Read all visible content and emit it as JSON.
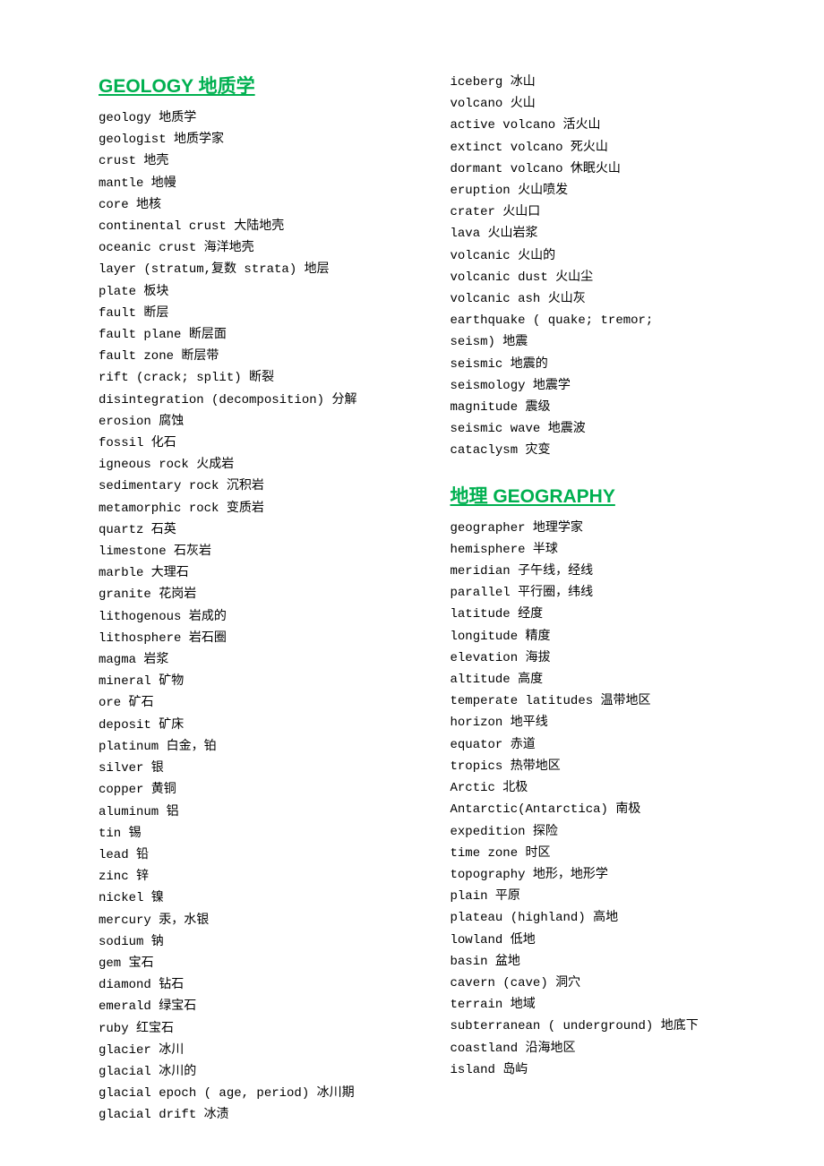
{
  "sections": [
    {
      "id": "geology",
      "heading": "GEOLOGY 地质学",
      "terms": [
        "geology 地质学",
        "geologist 地质学家",
        "crust 地壳",
        "mantle 地幔",
        "core 地核",
        "continental crust 大陆地壳",
        "oceanic crust 海洋地壳",
        "layer (stratum,复数 strata) 地层",
        "plate 板块",
        "fault 断层",
        "fault plane 断层面",
        "fault zone 断层带",
        "rift (crack; split) 断裂",
        "disintegration (decomposition) 分解",
        "erosion 腐蚀",
        "fossil 化石",
        "igneous rock 火成岩",
        "sedimentary rock 沉积岩",
        "metamorphic rock 变质岩",
        "quartz 石英",
        "limestone 石灰岩",
        "marble 大理石",
        "granite 花岗岩",
        "lithogenous 岩成的",
        "lithosphere 岩石圈",
        "magma 岩浆",
        "mineral 矿物",
        "ore 矿石",
        "deposit 矿床",
        "platinum 白金，铂",
        "silver 银",
        "copper 黄铜",
        "aluminum 铝",
        "tin 锡",
        "lead 铅",
        "zinc 锌",
        "nickel 镍",
        "mercury 汞，水银",
        "sodium 钠",
        "gem 宝石",
        "diamond 钻石",
        "emerald 绿宝石",
        "ruby 红宝石",
        "glacier 冰川",
        "glacial 冰川的",
        "glacial epoch ( age, period) 冰川期",
        "glacial drift 冰渍",
        "iceberg 冰山",
        "volcano 火山",
        "active volcano 活火山",
        "extinct volcano 死火山",
        "dormant volcano 休眠火山",
        "eruption 火山喷发",
        "crater 火山口",
        "lava 火山岩浆",
        "volcanic 火山的",
        "volcanic dust 火山尘",
        "volcanic ash 火山灰",
        "earthquake ( quake; tremor;",
        "seism) 地震",
        "seismic 地震的",
        "seismology 地震学",
        "magnitude 震级",
        "seismic wave 地震波",
        "cataclysm 灾变"
      ]
    },
    {
      "id": "geography",
      "heading": "地理 GEOGRAPHY",
      "terms": [
        "geographer 地理学家",
        "hemisphere 半球",
        "meridian 子午线，经线",
        "parallel 平行圈，纬线",
        "latitude 经度",
        "longitude 精度",
        "elevation 海拔",
        "altitude 高度",
        "temperate latitudes 温带地区",
        "horizon 地平线",
        "equator 赤道",
        "tropics 热带地区",
        "Arctic 北极",
        "Antarctic(Antarctica) 南极",
        "expedition 探险",
        "time zone 时区",
        "topography 地形，地形学",
        "plain 平原",
        "plateau (highland) 高地",
        "lowland 低地",
        "basin 盆地",
        "cavern (cave) 洞穴",
        "terrain 地域",
        "subterranean ( underground) 地底下",
        "coastland 沿海地区",
        "island 岛屿"
      ]
    }
  ],
  "style": {
    "heading_color": "#00b050",
    "text_color": "#000000",
    "background_color": "#ffffff",
    "heading_fontsize": 21,
    "term_fontsize": 14,
    "line_height": 24.2
  }
}
